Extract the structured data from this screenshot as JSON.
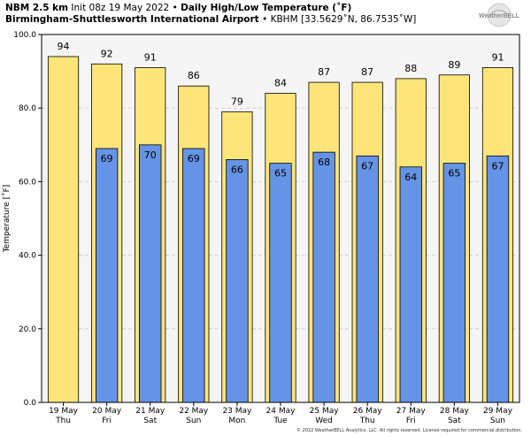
{
  "header": {
    "model": "NBM 2.5 km",
    "init": "Init 08z 19 May 2022",
    "bullet": "•",
    "title": "Daily High/Low Temperature (˚F)",
    "station_name": "Birmingham-Shuttlesworth International Airport",
    "station_code": "KBHM [33.5629˚N, 86.7535˚W]"
  },
  "logo": {
    "text": "WeatherBELL"
  },
  "footer": {
    "copyright": "© 2022 WeatherBELL Analytics, LLC. All rights reserved. License required for commercial distribution."
  },
  "colors": {
    "high": "#fde57a",
    "low": "#6593e6",
    "plot_bg": "#f5f5f5",
    "grid": "#cfcfcf"
  },
  "chart_data": {
    "type": "bar",
    "categories": [
      "19 May",
      "20 May",
      "21 May",
      "22 May",
      "23 May",
      "24 May",
      "25 May",
      "26 May",
      "27 May",
      "28 May",
      "29 May"
    ],
    "weekdays": [
      "Thu",
      "Fri",
      "Sat",
      "Sun",
      "Mon",
      "Tue",
      "Wed",
      "Thu",
      "Fri",
      "Sat",
      "Sun"
    ],
    "series": [
      {
        "name": "High",
        "values": [
          94,
          92,
          91,
          86,
          79,
          84,
          87,
          87,
          88,
          89,
          91
        ],
        "labels": [
          "94",
          "92",
          "91",
          "86",
          "79",
          "84",
          "87",
          "87",
          "88",
          "89",
          "91"
        ]
      },
      {
        "name": "Low",
        "values": [
          null,
          69,
          70,
          69,
          66,
          65,
          68,
          67,
          64,
          65,
          67
        ],
        "labels": [
          "",
          "69",
          "70",
          "69",
          "66",
          "65",
          "68",
          "67",
          "64",
          "65",
          "67"
        ]
      }
    ],
    "ylabel": "Temperature [˚F]",
    "ylim": [
      0,
      100
    ],
    "yticks": [
      "0.0",
      "20.0",
      "40.0",
      "60.0",
      "80.0",
      "100.0"
    ],
    "grid": true
  }
}
